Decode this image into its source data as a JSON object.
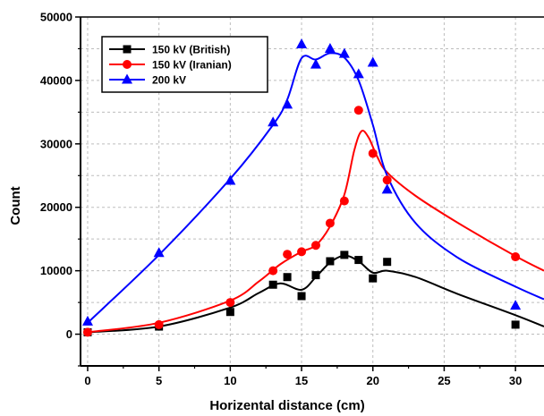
{
  "chart_data": {
    "type": "scatter",
    "xlabel": "Horizental distance (cm)",
    "ylabel": "Count",
    "xlim": [
      -0.5,
      32
    ],
    "ylim": [
      -5000,
      50000
    ],
    "x_ticks": [
      0,
      5,
      10,
      15,
      20,
      25,
      30
    ],
    "y_ticks": [
      0,
      10000,
      20000,
      30000,
      40000,
      50000
    ],
    "grid": true,
    "legend_position": "top-left",
    "series": [
      {
        "name": "150 kV (British)",
        "color": "#000000",
        "marker": "square",
        "points": [
          [
            0,
            300
          ],
          [
            5,
            1200
          ],
          [
            10,
            3500
          ],
          [
            13,
            7800
          ],
          [
            14,
            9000
          ],
          [
            15,
            6000
          ],
          [
            16,
            9300
          ],
          [
            17,
            11500
          ],
          [
            18,
            12500
          ],
          [
            19,
            11700
          ],
          [
            20,
            8800
          ],
          [
            21,
            11400
          ],
          [
            30,
            1500
          ]
        ],
        "fit": [
          [
            0,
            300
          ],
          [
            5,
            1200
          ],
          [
            10,
            4200
          ],
          [
            12,
            6500
          ],
          [
            13.5,
            8000
          ],
          [
            15,
            7000
          ],
          [
            16,
            9000
          ],
          [
            17,
            11300
          ],
          [
            18,
            12400
          ],
          [
            19,
            11500
          ],
          [
            20,
            9700
          ],
          [
            21,
            10000
          ],
          [
            23,
            9000
          ],
          [
            26,
            6300
          ],
          [
            30,
            3000
          ],
          [
            32,
            1200
          ]
        ]
      },
      {
        "name": "150 kV (Iranian)",
        "color": "#ff0000",
        "marker": "circle",
        "points": [
          [
            0,
            300
          ],
          [
            5,
            1500
          ],
          [
            10,
            5000
          ],
          [
            13,
            10000
          ],
          [
            14,
            12600
          ],
          [
            15,
            13000
          ],
          [
            16,
            14000
          ],
          [
            17,
            17500
          ],
          [
            18,
            21000
          ],
          [
            19,
            35300
          ],
          [
            20,
            28500
          ],
          [
            21,
            24300
          ],
          [
            30,
            12200
          ]
        ],
        "fit": [
          [
            0,
            300
          ],
          [
            5,
            1800
          ],
          [
            10,
            5300
          ],
          [
            12,
            8300
          ],
          [
            13.5,
            11000
          ],
          [
            15,
            13000
          ],
          [
            16,
            14000
          ],
          [
            17,
            17000
          ],
          [
            18,
            22000
          ],
          [
            18.7,
            29000
          ],
          [
            19.2,
            32000
          ],
          [
            19.7,
            31000
          ],
          [
            20.3,
            28000
          ],
          [
            21,
            25500
          ],
          [
            23,
            21800
          ],
          [
            26,
            17500
          ],
          [
            30,
            12300
          ],
          [
            32,
            10000
          ]
        ]
      },
      {
        "name": "200 kV",
        "color": "#0000ff",
        "marker": "triangle",
        "points": [
          [
            0,
            2000
          ],
          [
            5,
            12800
          ],
          [
            10,
            24200
          ],
          [
            13,
            33400
          ],
          [
            14,
            36200
          ],
          [
            15,
            45700
          ],
          [
            16,
            42500
          ],
          [
            17,
            45000
          ],
          [
            18,
            44200
          ],
          [
            19,
            41000
          ],
          [
            20,
            42800
          ],
          [
            21,
            22800
          ],
          [
            30,
            4500
          ]
        ],
        "fit": [
          [
            0,
            1800
          ],
          [
            5,
            12500
          ],
          [
            10,
            24500
          ],
          [
            13,
            33000
          ],
          [
            14,
            37000
          ],
          [
            15,
            43500
          ],
          [
            16,
            43300
          ],
          [
            17,
            44300
          ],
          [
            18,
            43600
          ],
          [
            19,
            40000
          ],
          [
            20,
            33000
          ],
          [
            21,
            25000
          ],
          [
            23,
            17500
          ],
          [
            26,
            12000
          ],
          [
            30,
            7500
          ],
          [
            32,
            5500
          ]
        ]
      }
    ]
  }
}
